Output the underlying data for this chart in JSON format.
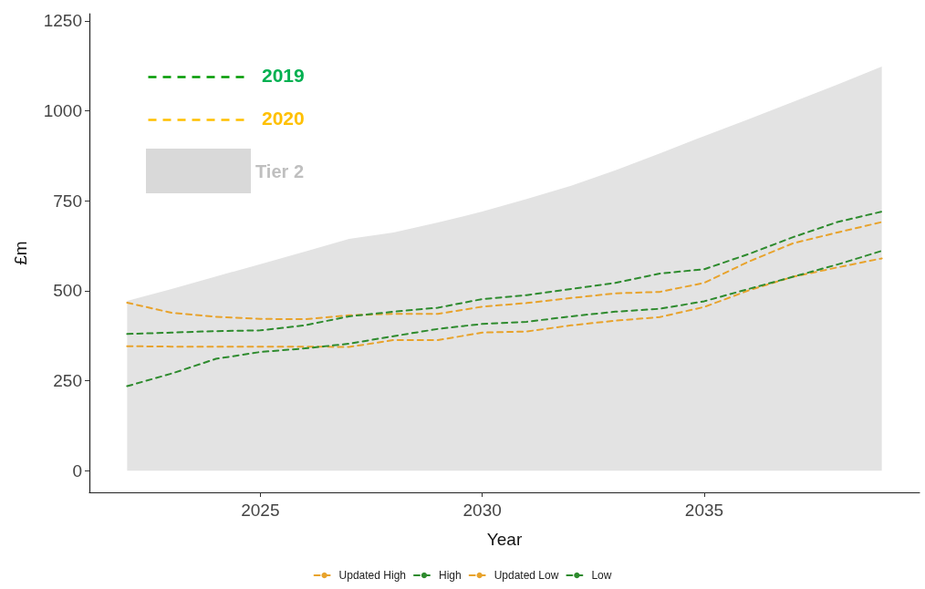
{
  "chart_data": {
    "type": "line",
    "xlabel": "Year",
    "ylabel": "£m",
    "x": [
      2022,
      2023,
      2024,
      2025,
      2026,
      2027,
      2028,
      2029,
      2030,
      2031,
      2032,
      2033,
      2034,
      2035,
      2036,
      2037,
      2038,
      2039
    ],
    "series": [
      {
        "name": "Tier 2",
        "type": "area",
        "color": "#e3e3e3",
        "values": [
          472,
          505,
          540,
          574,
          609,
          644,
          662,
          690,
          720,
          755,
          792,
          835,
          882,
          930,
          977,
          1025,
          1073,
          1123
        ]
      },
      {
        "name": "Updated High",
        "color": "#e8a32c",
        "line_style": "dashed",
        "values": [
          467,
          439,
          428,
          422,
          421,
          432,
          436,
          436,
          456,
          466,
          480,
          493,
          497,
          522,
          581,
          632,
          662,
          691
        ]
      },
      {
        "name": "High",
        "color": "#2e8b2e",
        "line_style": "dashed",
        "values": [
          380,
          384,
          388,
          390,
          404,
          429,
          442,
          453,
          477,
          488,
          505,
          522,
          548,
          560,
          602,
          649,
          691,
          720
        ]
      },
      {
        "name": "Updated Low",
        "color": "#e8a32c",
        "line_style": "dashed",
        "values": [
          346,
          345,
          345,
          345,
          345,
          344,
          363,
          363,
          384,
          387,
          404,
          417,
          427,
          455,
          501,
          539,
          565,
          590
        ]
      },
      {
        "name": "Low",
        "color": "#2e8b2e",
        "line_style": "dashed",
        "values": [
          235,
          270,
          311,
          330,
          340,
          353,
          374,
          394,
          408,
          414,
          429,
          442,
          450,
          471,
          505,
          539,
          573,
          611
        ]
      }
    ],
    "annotations": [
      "2019",
      "2020"
    ],
    "xlim": [
      2021.15,
      2039.85
    ],
    "xticks": [
      2025,
      2030,
      2035
    ],
    "ylim": [
      -60,
      1270
    ],
    "yticks": [
      0,
      250,
      500,
      750,
      1000,
      1250
    ],
    "grid": false,
    "legend": "bottom",
    "marker": "none"
  }
}
